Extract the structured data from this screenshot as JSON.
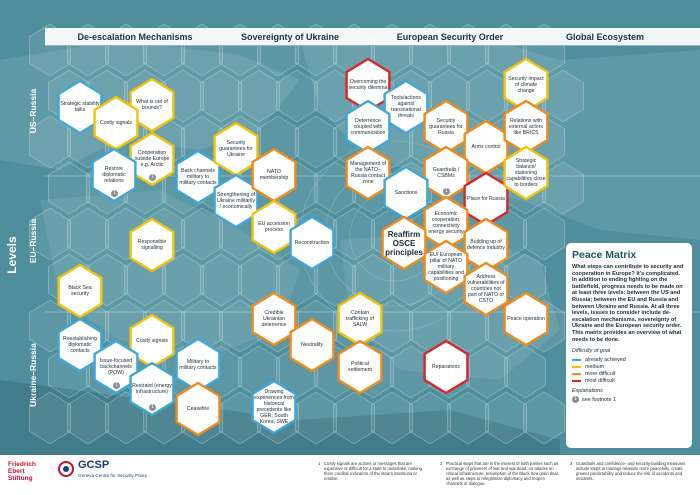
{
  "columns": {
    "deescalation": "De-escalation Mechanisms",
    "sovereignty": "Sovereignty of Ukraine",
    "european": "European Security Order",
    "global": "Global Ecosystem"
  },
  "levels": {
    "title": "Levels",
    "us_russia": "US–Russia",
    "eu_russia": "EU–Russia",
    "ukraine_russia": "Ukraine–Russia"
  },
  "hexes": {
    "strategic_stability": "Strategic stability talks",
    "out_of_bounds": "What is out of bounds?",
    "costly_signals_us": "Costly signals",
    "cooperation_arctic": "Cooperation outside Europe e.g. Arctic",
    "restore_diplomatic": "Restore diplomatic relations",
    "back_channels": "Back channels military to military contacts",
    "security_guarantees_ukraine": "Security guarantees for Ukraine",
    "strengthening_ukraine": "Strengthening of Ukraine militarily / economically",
    "nato_membership": "NATO membership",
    "eu_accession": "EU accession process",
    "reconstruction": "Reconstruction",
    "overcoming_dilemma": "Overcoming the security dilemma",
    "tools_threats": "Tools/actions against transnational threats",
    "deterrence_communication": "Deterrence coupled with communication",
    "security_guarantees_russia": "Security guarantees for Russia",
    "arms_control": "Arms control",
    "management_contact_zone": "Management of the NATO–Russia contact zone",
    "guardrails_csbms": "Guardrails / CSBMs",
    "sanctions": "Sanctions",
    "place_for_russia": "Place for Russia",
    "economic_cooperation": "Economic cooperation, connectivity energy security",
    "reaffirm_osce": "Reaffirm OSCE principles",
    "building_defence": "Building up of defence industry",
    "eu_pillar_nato": "EU/ European pillar of NATO military capabilities and positioning",
    "address_vulnerabilities": "Address vulnerabilities of countries not part of NATO or CSTO",
    "security_climate": "Security impact of climate change",
    "relations_brics": "Relations with external actors like BRICS",
    "strategic_balance": "Strategic balance/ stationing capabilities close to borders",
    "responsible_signalling": "Responsible signalling",
    "black_sea_security": "Black Sea security",
    "reestablishing_diplomatic": "Reestablishing diplomatic contacts",
    "costly_signals_ua": "Costly signals",
    "issue_focused": "Issue-focused backchannels (POW)",
    "military_contacts": "Military to military contacts",
    "restraint_energy": "Restraint (energy infrastructure)",
    "ceasefire": "Ceasefire",
    "credible_deterrence": "Credible Ukrainian deterrence",
    "neutrality": "Neutrality",
    "contain_salw": "Contain trafficking of SALW",
    "political_settlement": "Political settlement",
    "drawing_experiences": "Drawing experiences from historical precedents like GER, South Korea, SWE",
    "reparations": "Reparations",
    "peace_operation": "Peace operation",
    "footnote_marker": "1"
  },
  "matrix": {
    "title": "Peace Matrix",
    "body": "What steps can contribute to security and cooperation in Europe? It's complicated. In addition to ending fighting on the battlefield, progress needs to be made on at least three levels: between the US and Russia; between the EU and Russia and between Ukraine and Russia. At all three levels, issues to consider include de-escalation mechanisms, sovereignty of Ukraine and the European security order. This matrix provides an overview of what needs to be done.",
    "legend_title": "Difficulty of goal",
    "legend": [
      {
        "label": "already achieved",
        "color": "#3fa6d6"
      },
      {
        "label": "medium",
        "color": "#f2c20d"
      },
      {
        "label": "more difficult",
        "color": "#f08a1c"
      },
      {
        "label": "most difficult",
        "color": "#d8262b"
      }
    ],
    "explanations_title": "Explanations",
    "explanation_marker": "1",
    "explanation_text": "see footnote 1"
  },
  "footer": {
    "fes": [
      "Friedrich",
      "Ebert",
      "Stiftung"
    ],
    "gcsp_name": "GCSP",
    "gcsp_sub": "Geneva Centre for Security Policy",
    "notes": [
      {
        "num": "1",
        "text": "Costly signals are actions or messages that are expensive or difficult for a state to undertake, making them credible indicators of the state's intentions or resolve."
      },
      {
        "num": "2",
        "text": "Practical steps that are in the interest of both parties such as exchange of prisoners of war and war dead, no attacks on critical infrastructure, resumption of the Black Sea grain deal, as well as steps to relegitimize diplomacy and reopen channels of dialogue."
      },
      {
        "num": "3",
        "text": "Guardrails and confidence- and security-building measures include steps to manage relations more peacefully, create greater predictability and reduce the risk of accidents and incidents."
      }
    ]
  },
  "colors": {
    "blue": "#3fa6d6",
    "yellow": "#f2c20d",
    "orange": "#f08a1c",
    "red": "#d8262b",
    "background": "#3f7f8f"
  }
}
